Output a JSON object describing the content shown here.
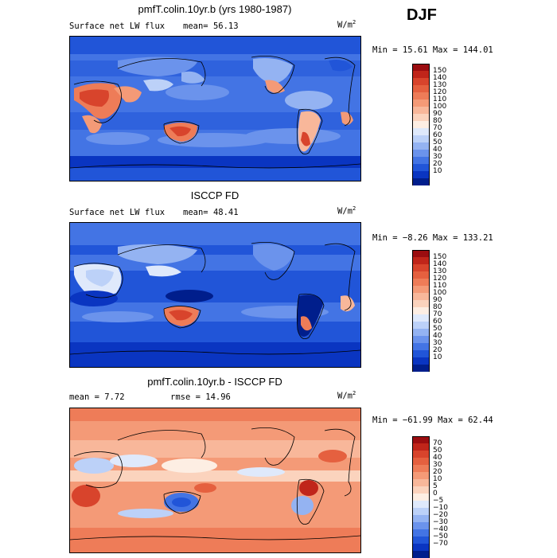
{
  "season": "DJF",
  "panels": [
    {
      "title": "pmfT.colin.10yr.b (yrs 1980-1987)",
      "left_label": "Surface net LW flux",
      "stat_label": "mean=",
      "stat_value": "56.13",
      "units_base": "W/m",
      "units_exp": "2",
      "minmax": "Min =  15.61 Max = 144.01",
      "colorbar_ticks": [
        "150",
        "140",
        "130",
        "120",
        "110",
        "100",
        "90",
        "80",
        "70",
        "60",
        "50",
        "40",
        "30",
        "20",
        "10"
      ],
      "colorbar_colors": [
        "#9b0d10",
        "#c0251a",
        "#d8442c",
        "#e5603f",
        "#ee7c58",
        "#f49a77",
        "#f8b79a",
        "#fbd3bd",
        "#fdeee3",
        "#dfe9fb",
        "#bcd1f8",
        "#94b3f2",
        "#6b93ec",
        "#4374e4",
        "#2155d8",
        "#0a35c1",
        "#001e8c"
      ],
      "palette": "abs"
    },
    {
      "title": "ISCCP FD",
      "left_label": "Surface net LW flux",
      "stat_label": "mean=",
      "stat_value": "48.41",
      "units_base": "W/m",
      "units_exp": "2",
      "minmax": "Min =  −8.26 Max = 133.21",
      "colorbar_ticks": [
        "150",
        "140",
        "130",
        "120",
        "110",
        "100",
        "90",
        "80",
        "70",
        "60",
        "50",
        "40",
        "30",
        "20",
        "10"
      ],
      "colorbar_colors": [
        "#9b0d10",
        "#c0251a",
        "#d8442c",
        "#e5603f",
        "#ee7c58",
        "#f49a77",
        "#f8b79a",
        "#fbd3bd",
        "#fdeee3",
        "#dfe9fb",
        "#bcd1f8",
        "#94b3f2",
        "#6b93ec",
        "#4374e4",
        "#2155d8",
        "#0a35c1",
        "#001e8c"
      ],
      "palette": "abs"
    },
    {
      "title": "pmfT.colin.10yr.b - ISCCP FD",
      "mean_label": "mean =",
      "mean_value": "7.72",
      "rmse_label": "rmse =",
      "rmse_value": "14.96",
      "units_base": "W/m",
      "units_exp": "2",
      "minmax": "Min = −61.99 Max =  62.44",
      "colorbar_ticks": [
        "70",
        "50",
        "40",
        "30",
        "20",
        "10",
        "5",
        "0",
        "−5",
        "−10",
        "−20",
        "−30",
        "−40",
        "−50",
        "−70"
      ],
      "colorbar_colors": [
        "#9b0d10",
        "#c0251a",
        "#d8442c",
        "#e5603f",
        "#ee7c58",
        "#f49a77",
        "#f8b79a",
        "#fbd3bd",
        "#fdeee3",
        "#dfe9fb",
        "#bcd1f8",
        "#94b3f2",
        "#6b93ec",
        "#4374e4",
        "#2155d8",
        "#0a35c1",
        "#001e8c"
      ],
      "palette": "diff"
    }
  ]
}
